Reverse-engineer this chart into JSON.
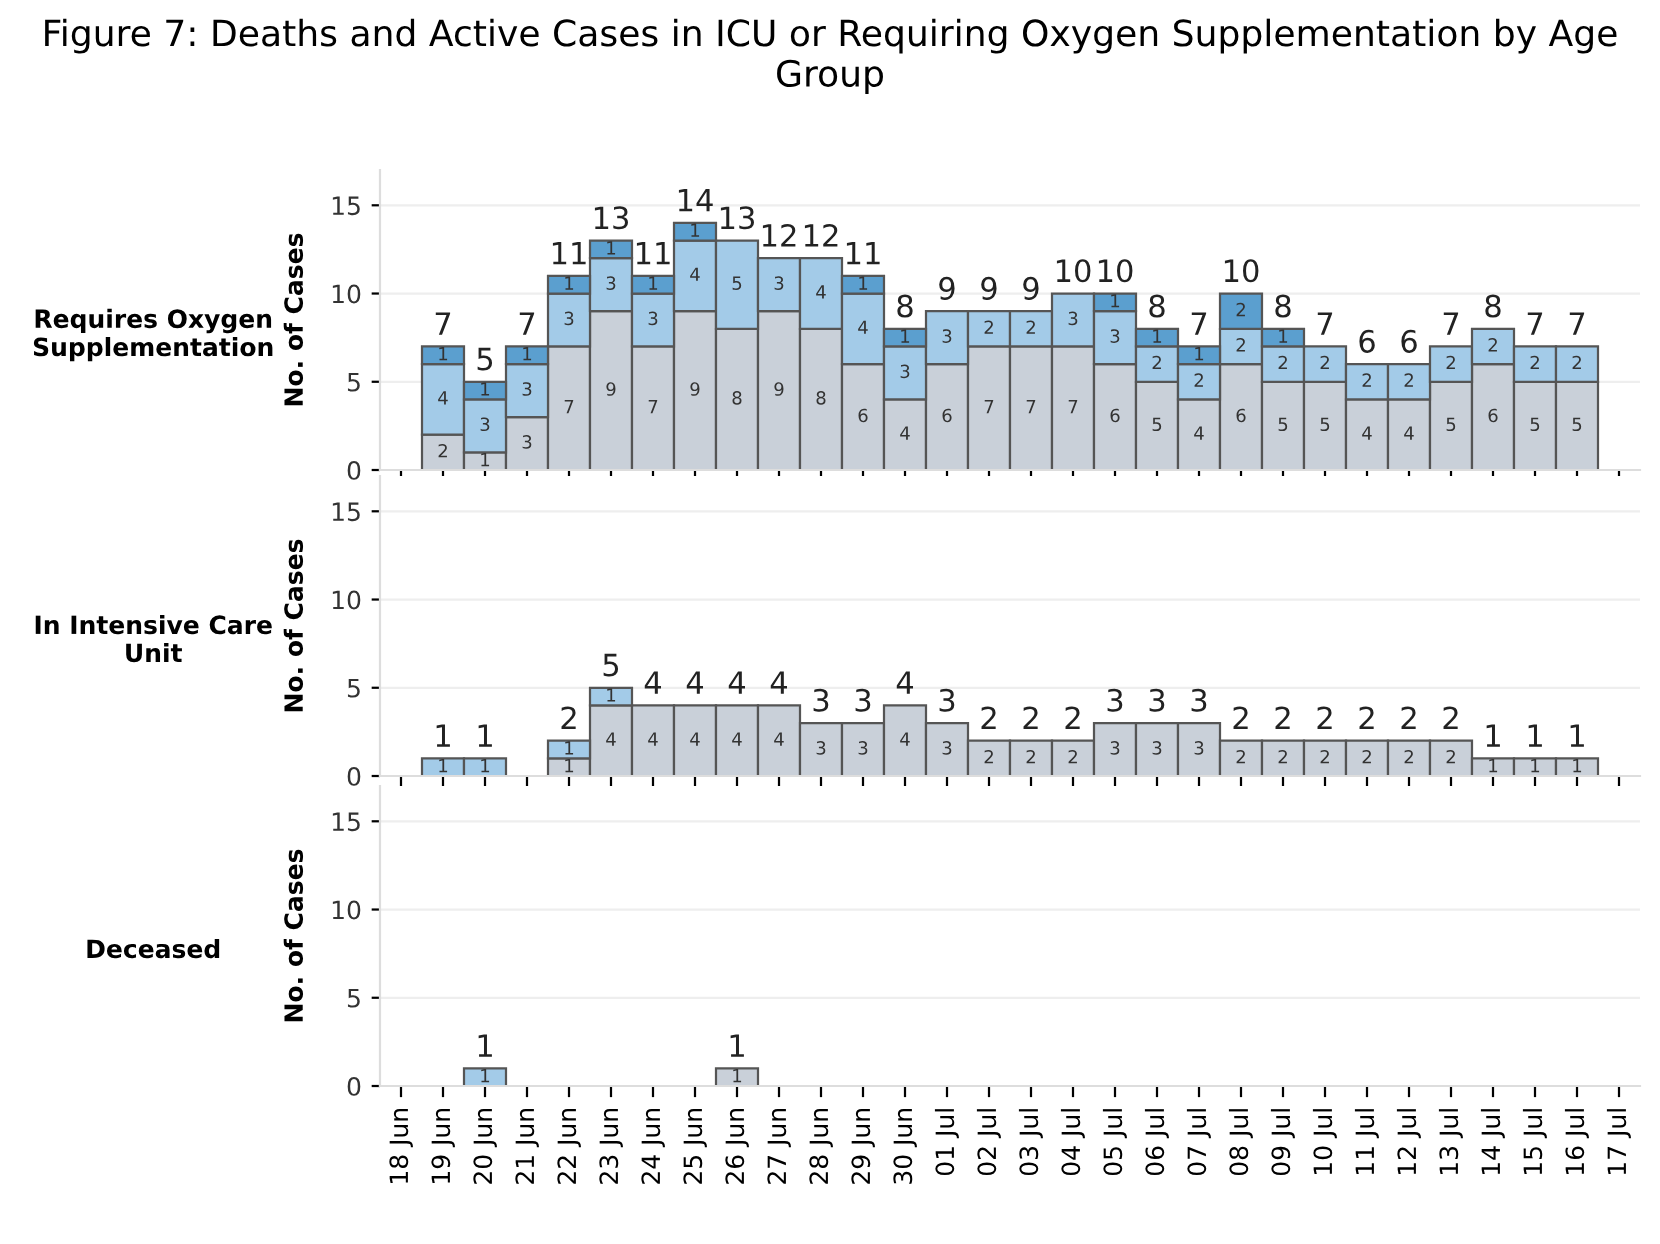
{
  "chart_data": [
    {
      "type": "bar",
      "stacked": true,
      "title": "Requires Oxygen Supplementation",
      "ylabel": "No. of Cases",
      "grid": "y",
      "data_labels": true,
      "tick_labels": "y",
      "annotations": [
        "Figure 7: Deaths and Active Cases in ICU or Requiring Oxygen Supplementation by Age Group"
      ],
      "ylim": [
        0,
        17
      ],
      "yticks": [
        0,
        5,
        10,
        15
      ],
      "series": [
        {
          "color": "#c9d0d9",
          "values": [
            null,
            2,
            1,
            3,
            7,
            9,
            7,
            9,
            8,
            9,
            8,
            6,
            4,
            6,
            7,
            7,
            7,
            6,
            5,
            4,
            6,
            5,
            5,
            4,
            4,
            5,
            6,
            5,
            5,
            null
          ]
        },
        {
          "color": "#a3cbe8",
          "values": [
            null,
            4,
            3,
            3,
            3,
            3,
            3,
            4,
            5,
            3,
            4,
            4,
            3,
            3,
            2,
            2,
            3,
            3,
            2,
            2,
            2,
            2,
            2,
            2,
            2,
            2,
            2,
            2,
            2,
            null
          ]
        },
        {
          "color": "#5b9fcf",
          "values": [
            null,
            1,
            1,
            1,
            1,
            1,
            1,
            1,
            null,
            null,
            null,
            1,
            1,
            null,
            null,
            null,
            null,
            1,
            1,
            1,
            2,
            1,
            null,
            null,
            null,
            null,
            null,
            null,
            null,
            null
          ]
        }
      ],
      "totals": [
        null,
        "7",
        "5",
        "7",
        "11",
        "13",
        "11",
        "14",
        "13",
        "12",
        "12",
        "11",
        "8",
        "9",
        "9",
        "9",
        "10",
        "10",
        "8",
        "7",
        "10",
        "8",
        "7",
        "6",
        "6",
        "7",
        "8",
        "7",
        "7",
        null
      ]
    },
    {
      "type": "bar",
      "stacked": true,
      "title": "In Intensive Care Unit",
      "ylabel": "No. of Cases",
      "grid": "y",
      "data_labels": true,
      "tick_labels": "y",
      "ylim": [
        0,
        17
      ],
      "yticks": [
        0,
        5,
        10,
        15
      ],
      "series": [
        {
          "color": "#c9d0d9",
          "values": [
            null,
            null,
            null,
            null,
            1,
            4,
            4,
            4,
            4,
            4,
            3,
            3,
            4,
            3,
            2,
            2,
            2,
            3,
            3,
            3,
            2,
            2,
            2,
            2,
            2,
            2,
            1,
            1,
            1,
            null
          ]
        },
        {
          "color": "#a3cbe8",
          "values": [
            null,
            1,
            1,
            null,
            1,
            1,
            null,
            null,
            null,
            null,
            null,
            null,
            null,
            null,
            null,
            null,
            null,
            null,
            null,
            null,
            null,
            null,
            null,
            null,
            null,
            null,
            null,
            null,
            null,
            null
          ]
        }
      ],
      "totals": [
        null,
        "1",
        "1",
        null,
        "2",
        "5",
        "4",
        "4",
        "4",
        "4",
        "3",
        "3",
        "4",
        "3",
        "2",
        "2",
        "2",
        "3",
        "3",
        "3",
        "2",
        "2",
        "2",
        "2",
        "2",
        "2",
        "1",
        "1",
        "1",
        null
      ]
    },
    {
      "type": "bar",
      "stacked": true,
      "title": "Deceased",
      "ylabel": "No. of Cases",
      "grid": "y",
      "data_labels": true,
      "categories": [
        "18 Jun",
        "19 Jun",
        "20 Jun",
        "21 Jun",
        "22 Jun",
        "23 Jun",
        "24 Jun",
        "25 Jun",
        "26 Jun",
        "27 Jun",
        "28 Jun",
        "29 Jun",
        "30 Jun",
        "01 Jul",
        "02 Jul",
        "03 Jul",
        "04 Jul",
        "05 Jul",
        "06 Jul",
        "07 Jul",
        "08 Jul",
        "09 Jul",
        "10 Jul",
        "11 Jul",
        "12 Jul",
        "13 Jul",
        "14 Jul",
        "15 Jul",
        "16 Jul",
        "17 Jul"
      ],
      "ylim": [
        0,
        17
      ],
      "yticks": [
        0,
        5,
        10,
        15
      ],
      "series": [
        {
          "color": "#c9d0d9",
          "values": [
            null,
            null,
            null,
            null,
            null,
            null,
            null,
            null,
            1,
            null,
            null,
            null,
            null,
            null,
            null,
            null,
            null,
            null,
            null,
            null,
            null,
            null,
            null,
            null,
            null,
            null,
            null,
            null,
            null,
            null
          ]
        },
        {
          "color": "#a3cbe8",
          "values": [
            null,
            null,
            1,
            null,
            null,
            null,
            null,
            null,
            null,
            null,
            null,
            null,
            null,
            null,
            null,
            null,
            null,
            null,
            null,
            null,
            null,
            null,
            null,
            null,
            null,
            null,
            null,
            null,
            null,
            null
          ]
        }
      ],
      "totals": [
        null,
        null,
        "1",
        null,
        null,
        null,
        null,
        null,
        "1",
        null,
        null,
        null,
        null,
        null,
        null,
        null,
        null,
        null,
        null,
        null,
        null,
        null,
        null,
        null,
        null,
        null,
        null,
        null,
        null,
        null
      ]
    }
  ]
}
